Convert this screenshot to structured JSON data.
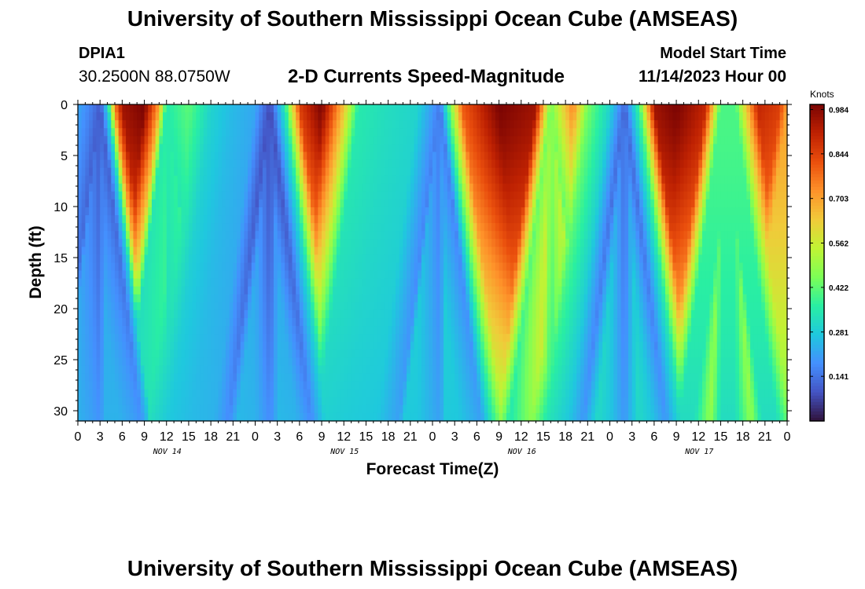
{
  "header": {
    "title": "University of Southern Mississippi Ocean Cube (AMSEAS)",
    "station_id": "DPIA1",
    "station_coords": "30.2500N  88.0750W",
    "chart_title": "2-D Currents Speed-Magnitude",
    "model_label": "Model Start Time",
    "model_time": "11/14/2023 Hour 00"
  },
  "footer": {
    "title": "University of Southern Mississippi Ocean Cube (AMSEAS)"
  },
  "chart_data": {
    "type": "heatmap",
    "title": "2-D Currents Speed-Magnitude",
    "xlabel": "Forecast Time(Z)",
    "ylabel": "Depth (ft)",
    "x_range_hours": [
      0,
      96
    ],
    "y_range_ft": [
      0,
      31
    ],
    "x_tick_labels": [
      "0",
      "3",
      "6",
      "9",
      "12",
      "15",
      "18",
      "21",
      "0",
      "3",
      "6",
      "9",
      "12",
      "15",
      "18",
      "21",
      "0",
      "3",
      "6",
      "9",
      "12",
      "15",
      "18",
      "21",
      "0",
      "3",
      "6",
      "9",
      "12",
      "15",
      "18",
      "21",
      "0"
    ],
    "y_ticks": [
      0,
      5,
      10,
      15,
      20,
      25,
      30
    ],
    "day_labels": [
      {
        "label": "NOV 14",
        "hour": 12
      },
      {
        "label": "NOV 15",
        "hour": 36
      },
      {
        "label": "NOV 16",
        "hour": 60
      },
      {
        "label": "NOV 17",
        "hour": 84
      }
    ],
    "colorbar": {
      "units": "Knots",
      "min": 0.0,
      "max": 1.0,
      "tick_labels": [
        "0.984",
        "0.844",
        "0.703",
        "0.562",
        "0.422",
        "0.281",
        "0.141"
      ],
      "tick_values": [
        0.984,
        0.844,
        0.703,
        0.562,
        0.422,
        0.281,
        0.141
      ],
      "colors": [
        "#30123b",
        "#4454c4",
        "#4490fe",
        "#1fc8de",
        "#29efa2",
        "#7dff56",
        "#c1f334",
        "#f1ca3a",
        "#fe922a",
        "#ea4f0d",
        "#be2102",
        "#7a0403"
      ]
    },
    "surface_speed_profile": [
      {
        "hour": 0,
        "speed": 0.22
      },
      {
        "hour": 2,
        "speed": 0.15
      },
      {
        "hour": 3,
        "speed": 0.1
      },
      {
        "hour": 4,
        "speed": 0.3
      },
      {
        "hour": 5,
        "speed": 0.75
      },
      {
        "hour": 6,
        "speed": 0.95
      },
      {
        "hour": 9,
        "speed": 1.0
      },
      {
        "hour": 11,
        "speed": 0.7
      },
      {
        "hour": 12,
        "speed": 0.35
      },
      {
        "hour": 15,
        "speed": 0.42
      },
      {
        "hour": 18,
        "speed": 0.3
      },
      {
        "hour": 21,
        "speed": 0.25
      },
      {
        "hour": 24,
        "speed": 0.22
      },
      {
        "hour": 26,
        "speed": 0.08
      },
      {
        "hour": 28,
        "speed": 0.35
      },
      {
        "hour": 30,
        "speed": 0.85
      },
      {
        "hour": 33,
        "speed": 1.0
      },
      {
        "hour": 36,
        "speed": 0.65
      },
      {
        "hour": 38,
        "speed": 0.35
      },
      {
        "hour": 42,
        "speed": 0.32
      },
      {
        "hour": 46,
        "speed": 0.3
      },
      {
        "hour": 49,
        "speed": 0.15
      },
      {
        "hour": 52,
        "speed": 0.8
      },
      {
        "hour": 57,
        "speed": 1.0
      },
      {
        "hour": 62,
        "speed": 0.95
      },
      {
        "hour": 64,
        "speed": 0.45
      },
      {
        "hour": 67,
        "speed": 0.75
      },
      {
        "hour": 69,
        "speed": 0.45
      },
      {
        "hour": 72,
        "speed": 0.3
      },
      {
        "hour": 74,
        "speed": 0.12
      },
      {
        "hour": 76,
        "speed": 0.4
      },
      {
        "hour": 78,
        "speed": 0.95
      },
      {
        "hour": 81,
        "speed": 1.0
      },
      {
        "hour": 85,
        "speed": 0.9
      },
      {
        "hour": 87,
        "speed": 0.4
      },
      {
        "hour": 89,
        "speed": 0.4
      },
      {
        "hour": 92,
        "speed": 0.9
      },
      {
        "hour": 95,
        "speed": 0.85
      },
      {
        "hour": 96,
        "speed": 0.7
      }
    ]
  }
}
